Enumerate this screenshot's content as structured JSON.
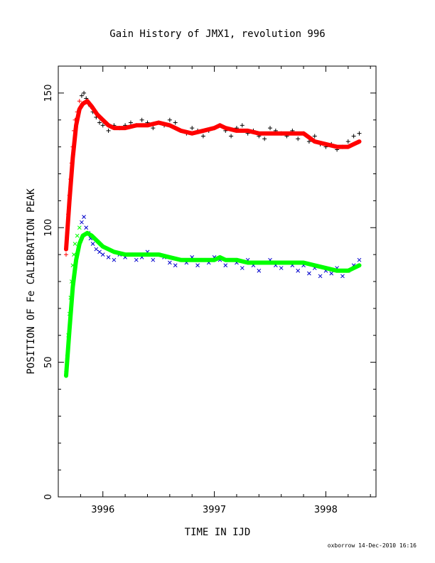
{
  "chart_data": {
    "type": "scatter",
    "title": "Gain History of JMX1, revolution 996",
    "xlabel": "TIME IN IJD",
    "ylabel": "POSITION OF Fe CALIBRATION PEAK",
    "xlim": [
      3995.6,
      3998.45
    ],
    "ylim": [
      0,
      160
    ],
    "xticks": [
      "3996",
      "3997",
      "3998"
    ],
    "yticks": [
      "0",
      "50",
      "100",
      "150"
    ],
    "grid": false,
    "footer": "oxborrow 14-Dec-2010 16:16",
    "colors": {
      "upper_points": "#000000",
      "upper_fit": "#ff0000",
      "lower_points": "#0000cc",
      "lower_fit": "#00ff00"
    },
    "series": [
      {
        "marker": "plus",
        "values_x": [
          3995.67,
          3995.68,
          3995.69,
          3995.7,
          3995.71,
          3995.72,
          3995.73,
          3995.74,
          3995.75,
          3995.77,
          3995.79,
          3995.81,
          3995.83,
          3995.85,
          3995.87,
          3995.89,
          3995.91,
          3995.94,
          3995.97,
          3996.0,
          3996.05,
          3996.1,
          3996.15,
          3996.2,
          3996.25,
          3996.3,
          3996.35,
          3996.4,
          3996.45,
          3996.5,
          3996.55,
          3996.6,
          3996.65,
          3996.7,
          3996.75,
          3996.8,
          3996.85,
          3996.9,
          3996.95,
          3997.0,
          3997.05,
          3997.1,
          3997.15,
          3997.2,
          3997.25,
          3997.3,
          3997.35,
          3997.4,
          3997.45,
          3997.5,
          3997.55,
          3997.6,
          3997.65,
          3997.7,
          3997.75,
          3997.8,
          3997.85,
          3997.9,
          3997.95,
          3998.0,
          3998.05,
          3998.1,
          3998.15,
          3998.2,
          3998.25,
          3998.3
        ],
        "values_y": [
          90,
          98,
          105,
          112,
          118,
          124,
          130,
          136,
          140,
          143,
          147,
          149,
          150,
          148,
          146,
          145,
          143,
          141,
          139,
          138,
          136,
          138,
          137,
          138,
          139,
          138,
          140,
          139,
          137,
          139,
          138,
          140,
          139,
          136,
          135,
          137,
          136,
          134,
          136,
          137,
          138,
          136,
          134,
          137,
          138,
          135,
          136,
          134,
          133,
          137,
          136,
          135,
          134,
          136,
          133,
          135,
          132,
          134,
          131,
          130,
          131,
          129,
          130,
          132,
          134,
          135
        ]
      },
      {
        "marker": "line",
        "values_x": [
          3995.67,
          3995.7,
          3995.73,
          3995.76,
          3995.79,
          3995.82,
          3995.86,
          3995.9,
          3995.95,
          3996.0,
          3996.05,
          3996.1,
          3996.2,
          3996.3,
          3996.4,
          3996.5,
          3996.6,
          3996.7,
          3996.8,
          3996.9,
          3997.0,
          3997.05,
          3997.1,
          3997.2,
          3997.3,
          3997.4,
          3997.5,
          3997.6,
          3997.7,
          3997.8,
          3997.9,
          3998.0,
          3998.1,
          3998.2,
          3998.25,
          3998.3
        ],
        "values_y": [
          92,
          110,
          126,
          138,
          144,
          146,
          147,
          145,
          142,
          140,
          138,
          137,
          137,
          138,
          138,
          139,
          138,
          136,
          135,
          136,
          137,
          138,
          137,
          136,
          136,
          135,
          135,
          135,
          135,
          135,
          132,
          131,
          130,
          130,
          131,
          132
        ]
      },
      {
        "marker": "cross",
        "values_x": [
          3995.67,
          3995.68,
          3995.69,
          3995.7,
          3995.71,
          3995.72,
          3995.73,
          3995.74,
          3995.75,
          3995.77,
          3995.79,
          3995.81,
          3995.83,
          3995.85,
          3995.87,
          3995.89,
          3995.91,
          3995.94,
          3995.97,
          3996.0,
          3996.05,
          3996.1,
          3996.15,
          3996.2,
          3996.25,
          3996.3,
          3996.35,
          3996.4,
          3996.45,
          3996.5,
          3996.55,
          3996.6,
          3996.65,
          3996.7,
          3996.75,
          3996.8,
          3996.85,
          3996.9,
          3996.95,
          3997.0,
          3997.05,
          3997.1,
          3997.15,
          3997.2,
          3997.25,
          3997.3,
          3997.35,
          3997.4,
          3997.45,
          3997.5,
          3997.55,
          3997.6,
          3997.65,
          3997.7,
          3997.75,
          3997.8,
          3997.85,
          3997.9,
          3997.95,
          3998.0,
          3998.05,
          3998.1,
          3998.15,
          3998.2,
          3998.25,
          3998.3
        ],
        "values_y": [
          46,
          52,
          60,
          68,
          74,
          80,
          86,
          90,
          94,
          97,
          100,
          102,
          104,
          100,
          98,
          96,
          94,
          92,
          91,
          90,
          89,
          88,
          90,
          89,
          90,
          88,
          89,
          91,
          88,
          90,
          89,
          87,
          86,
          88,
          87,
          89,
          86,
          88,
          87,
          89,
          88,
          86,
          88,
          87,
          85,
          88,
          86,
          84,
          87,
          88,
          86,
          85,
          87,
          86,
          84,
          86,
          83,
          85,
          82,
          84,
          83,
          85,
          82,
          84,
          86,
          88
        ]
      },
      {
        "marker": "line",
        "values_x": [
          3995.67,
          3995.7,
          3995.73,
          3995.76,
          3995.79,
          3995.82,
          3995.86,
          3995.9,
          3995.95,
          3996.0,
          3996.05,
          3996.1,
          3996.2,
          3996.3,
          3996.4,
          3996.5,
          3996.6,
          3996.7,
          3996.8,
          3996.9,
          3997.0,
          3997.05,
          3997.1,
          3997.2,
          3997.3,
          3997.4,
          3997.5,
          3997.6,
          3997.7,
          3997.8,
          3997.9,
          3998.0,
          3998.1,
          3998.2,
          3998.25,
          3998.3
        ],
        "values_y": [
          45,
          62,
          78,
          88,
          94,
          97,
          98,
          97,
          95,
          93,
          92,
          91,
          90,
          90,
          90,
          90,
          89,
          88,
          88,
          88,
          88,
          89,
          88,
          88,
          87,
          87,
          87,
          87,
          87,
          87,
          86,
          85,
          84,
          84,
          85,
          86
        ]
      }
    ]
  }
}
